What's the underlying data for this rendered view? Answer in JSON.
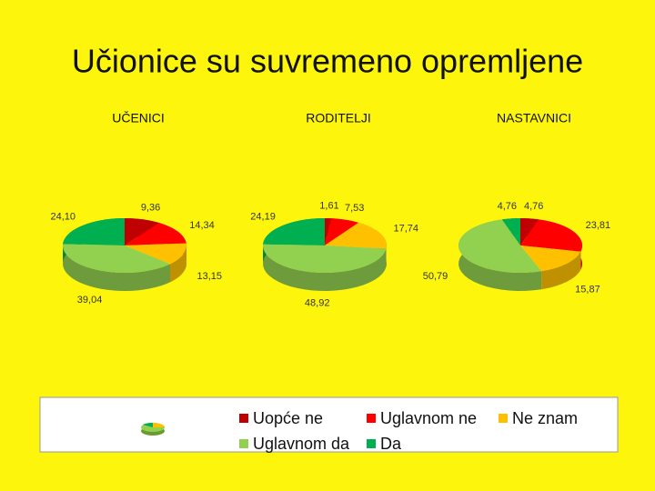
{
  "title": "Učionice su suvremeno opremljene",
  "legend": {
    "categories": [
      "Uopće ne",
      "Uglavnom ne",
      "Ne znam",
      "Uglavnom da",
      "Da"
    ],
    "colors": [
      "#c00000",
      "#ff0000",
      "#ffc000",
      "#92d050",
      "#00b050"
    ]
  },
  "chart_data": [
    {
      "type": "pie",
      "title": "UČENICI",
      "values": [
        9.36,
        14.34,
        13.15,
        39.04,
        24.1
      ],
      "value_labels": [
        "9,36",
        "14,34",
        "13,15",
        "39,04",
        "24,10"
      ]
    },
    {
      "type": "pie",
      "title": "RODITELJI",
      "values": [
        1.61,
        7.53,
        17.74,
        48.92,
        24.19
      ],
      "value_labels": [
        "1,61",
        "7,53",
        "17,74",
        "48,92",
        "24,19"
      ]
    },
    {
      "type": "pie",
      "title": "NASTAVNICI",
      "values": [
        4.76,
        23.81,
        15.87,
        50.79,
        4.76
      ],
      "value_labels": [
        "4,76",
        "23,81",
        "15,87",
        "50,79",
        "4,76"
      ]
    }
  ]
}
